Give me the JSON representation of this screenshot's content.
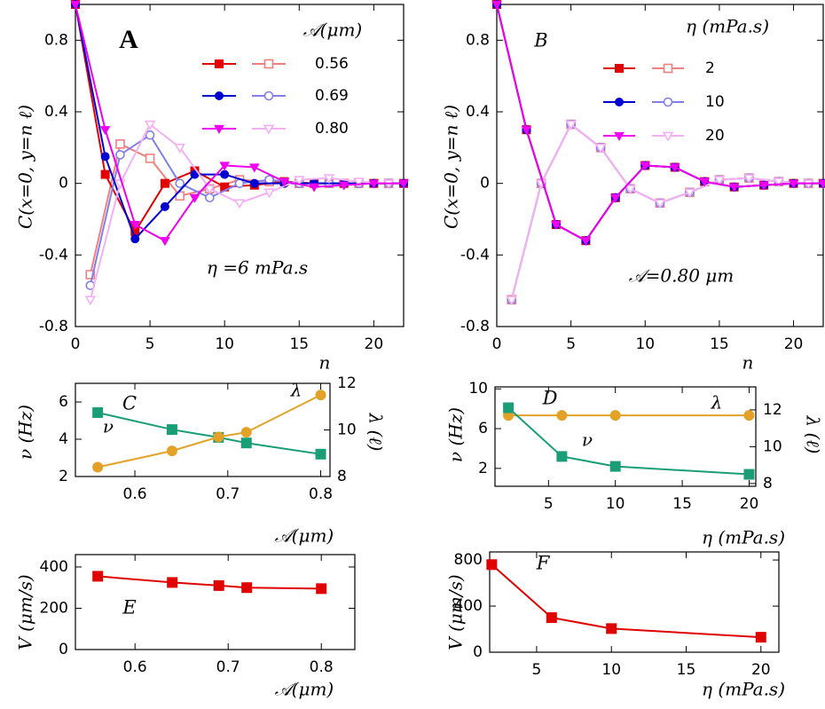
{
  "chart_data": [
    {
      "type": "line",
      "title": "A",
      "xlabel": "n",
      "ylabel": "C(x=0, y=n ℓ)",
      "annotations": [
        "η =6 mPa.s"
      ],
      "legend_title": "𝒜(μm)",
      "xlim": [
        0,
        22
      ],
      "ylim": [
        -0.8,
        1.0
      ],
      "xticks": [
        0,
        5,
        10,
        15,
        20
      ],
      "yticks": [
        -0.8,
        -0.4,
        0,
        0.4,
        0.8
      ],
      "series": [
        {
          "name": "0.56",
          "color": "#e00000",
          "marker": "square",
          "x": [
            0,
            2,
            4,
            6,
            8,
            10,
            12,
            14,
            16,
            18,
            20,
            22
          ],
          "values": [
            1,
            0.05,
            -0.27,
            0,
            0.07,
            -0.02,
            -0.01,
            0.01,
            0,
            0,
            0,
            0
          ],
          "hollow": {
            "color": "#f08080",
            "x": [
              1,
              3,
              5,
              7,
              9,
              11,
              13,
              15,
              17,
              19,
              21
            ],
            "values": [
              -0.51,
              0.22,
              0.14,
              -0.07,
              -0.03,
              0.02,
              0.01,
              0,
              0,
              0,
              0
            ]
          }
        },
        {
          "name": "0.69",
          "color": "#0000d0",
          "marker": "circle",
          "x": [
            0,
            2,
            4,
            6,
            8,
            10,
            12,
            14,
            16,
            18,
            20,
            22
          ],
          "values": [
            1,
            0.15,
            -0.31,
            -0.13,
            0.05,
            0.05,
            0,
            0,
            0,
            0,
            0,
            0
          ],
          "hollow": {
            "color": "#8080e8",
            "x": [
              1,
              3,
              5,
              7,
              9,
              11,
              13,
              15,
              17,
              19,
              21
            ],
            "values": [
              -0.57,
              0.16,
              0.27,
              0,
              -0.08,
              0,
              0.02,
              0,
              0,
              0,
              0
            ]
          }
        },
        {
          "name": "0.80",
          "color": "#f000f0",
          "marker": "tri",
          "x": [
            0,
            2,
            4,
            6,
            8,
            10,
            12,
            14,
            16,
            18,
            20,
            22
          ],
          "values": [
            1,
            0.3,
            -0.23,
            -0.32,
            -0.08,
            0.1,
            0.09,
            0.01,
            -0.02,
            -0.01,
            0,
            0
          ],
          "hollow": {
            "color": "#f4b0f4",
            "x": [
              1,
              3,
              5,
              7,
              9,
              11,
              13,
              15,
              17,
              19,
              21
            ],
            "values": [
              -0.65,
              0,
              0.33,
              0.2,
              -0.03,
              -0.11,
              -0.05,
              0.02,
              0.03,
              0.01,
              0
            ]
          }
        }
      ]
    },
    {
      "type": "line",
      "title": "B",
      "xlabel": "n",
      "ylabel": "C(x=0, y=n ℓ)",
      "annotations": [
        "𝒜=0.80 μm"
      ],
      "legend_title": "η (mPa.s)",
      "xlim": [
        0,
        22
      ],
      "ylim": [
        -0.8,
        1.0
      ],
      "xticks": [
        0,
        5,
        10,
        15,
        20
      ],
      "yticks": [
        -0.8,
        -0.4,
        0,
        0.4,
        0.8
      ],
      "series": [
        {
          "name": "2",
          "color": "#e00000",
          "marker": "square",
          "x": [
            0,
            2,
            4,
            6,
            8,
            10,
            12,
            14,
            16,
            18,
            20,
            22
          ],
          "values": [
            1,
            0.3,
            -0.23,
            -0.32,
            -0.08,
            0.1,
            0.09,
            0.01,
            -0.02,
            -0.01,
            0,
            0
          ],
          "hollow": {
            "color": "#f08080",
            "x": [
              1,
              3,
              5,
              7,
              9,
              11,
              13,
              15,
              17,
              19,
              21
            ],
            "values": [
              -0.65,
              0,
              0.33,
              0.2,
              -0.03,
              -0.11,
              -0.05,
              0.02,
              0.03,
              0.01,
              0
            ]
          }
        },
        {
          "name": "10",
          "color": "#0000d0",
          "marker": "circle",
          "x": [
            0,
            2,
            4,
            6,
            8,
            10,
            12,
            14,
            16,
            18,
            20,
            22
          ],
          "values": [
            1,
            0.3,
            -0.23,
            -0.32,
            -0.08,
            0.1,
            0.09,
            0.01,
            -0.02,
            -0.01,
            0,
            0
          ],
          "hollow": {
            "color": "#8080e8",
            "x": [
              1,
              3,
              5,
              7,
              9,
              11,
              13,
              15,
              17,
              19,
              21
            ],
            "values": [
              -0.65,
              0,
              0.33,
              0.2,
              -0.03,
              -0.11,
              -0.05,
              0.02,
              0.03,
              0.01,
              0
            ]
          }
        },
        {
          "name": "20",
          "color": "#f000f0",
          "marker": "tri",
          "x": [
            0,
            2,
            4,
            6,
            8,
            10,
            12,
            14,
            16,
            18,
            20,
            22
          ],
          "values": [
            1,
            0.3,
            -0.23,
            -0.32,
            -0.08,
            0.1,
            0.09,
            0.01,
            -0.02,
            -0.01,
            0,
            0
          ],
          "hollow": {
            "color": "#f4b0f4",
            "x": [
              1,
              3,
              5,
              7,
              9,
              11,
              13,
              15,
              17,
              19,
              21
            ],
            "values": [
              -0.65,
              0,
              0.33,
              0.2,
              -0.03,
              -0.11,
              -0.05,
              0.02,
              0.03,
              0.01,
              0
            ]
          }
        }
      ]
    },
    {
      "type": "line",
      "title": "C",
      "xlabel": "𝒜(μm)",
      "ylabel": "ν (Hz)",
      "y2label": "λ (ℓ)",
      "xlim": [
        0.536,
        0.81
      ],
      "ylim": [
        2,
        7
      ],
      "y2lim": [
        8,
        12
      ],
      "xticks": [
        0.6,
        0.7,
        0.8
      ],
      "yticks": [
        2,
        4,
        6
      ],
      "y2ticks": [
        8,
        10,
        12
      ],
      "series": [
        {
          "name": "ν",
          "color": "#1b9e77",
          "marker": "square",
          "x": [
            0.56,
            0.64,
            0.69,
            0.72,
            0.8
          ],
          "values": [
            5.43,
            4.52,
            4.1,
            3.8,
            3.2
          ]
        },
        {
          "name": "λ",
          "color": "#e3a227",
          "marker": "circle",
          "axis": "y2",
          "x": [
            0.56,
            0.64,
            0.69,
            0.72,
            0.8
          ],
          "values": [
            8.4,
            9.1,
            9.7,
            9.9,
            11.5
          ]
        }
      ]
    },
    {
      "type": "line",
      "title": "D",
      "xlabel": "η (mPa.s)",
      "ylabel": "ν (Hz)",
      "y2label": "λ (ℓ)",
      "xlim": [
        1,
        20.5
      ],
      "ylim": [
        0.2,
        10.2
      ],
      "y2lim": [
        7.85,
        13.25
      ],
      "xticks": [
        5,
        10,
        15,
        20
      ],
      "yticks": [
        2,
        6,
        10
      ],
      "y2ticks": [
        8,
        10,
        12
      ],
      "series": [
        {
          "name": "λ",
          "color": "#e3a227",
          "marker": "circle",
          "axis": "y2",
          "x": [
            2,
            6,
            10,
            20
          ],
          "values": [
            11.7,
            11.7,
            11.7,
            11.7
          ]
        },
        {
          "name": "ν",
          "color": "#1b9e77",
          "marker": "square",
          "x": [
            2,
            6,
            10,
            20
          ],
          "values": [
            8.1,
            3.2,
            2.2,
            1.4
          ]
        }
      ]
    },
    {
      "type": "line",
      "title": "E",
      "xlabel": "𝒜(μm)",
      "ylabel": "V (μm/s)",
      "xlim": [
        0.536,
        0.836
      ],
      "ylim": [
        0,
        460
      ],
      "xticks": [
        0.6,
        0.7,
        0.8
      ],
      "yticks": [
        0,
        200,
        400
      ],
      "series": [
        {
          "color": "#e00000",
          "marker": "square",
          "x": [
            0.56,
            0.64,
            0.69,
            0.72,
            0.8
          ],
          "values": [
            355,
            325,
            310,
            300,
            295
          ]
        }
      ]
    },
    {
      "type": "line",
      "title": "F",
      "xlabel": "η (mPa.s)",
      "ylabel": "V (μm/s)",
      "xlim": [
        1.86,
        21.2
      ],
      "ylim": [
        0,
        870
      ],
      "xticks": [
        5,
        10,
        15,
        20
      ],
      "yticks": [
        0,
        400,
        800
      ],
      "series": [
        {
          "color": "#e00000",
          "marker": "square",
          "x": [
            2,
            6,
            10,
            20
          ],
          "values": [
            760,
            300,
            205,
            130
          ]
        }
      ]
    }
  ]
}
